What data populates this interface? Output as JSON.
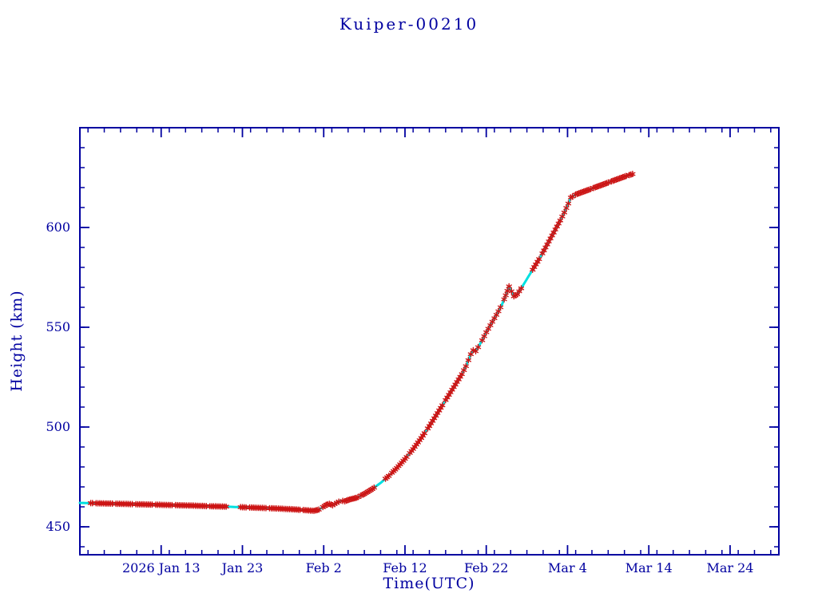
{
  "page": {
    "background": "#ffffff"
  },
  "chart_data": {
    "type": "line",
    "title": "Kuiper-00210",
    "xlabel": "Time(UTC)",
    "ylabel": "Height (km)",
    "legend": "none",
    "grid": "off",
    "colors": {
      "axis": "#0000a0",
      "text": "#0000a0",
      "marker_red": "#cc1414",
      "line_cyan": "#00e0e0",
      "background": "#ffffff"
    },
    "x_axis": {
      "unit": "day of year 2026",
      "min_day": 3,
      "max_day": 89,
      "major_tick_days": [
        13,
        23,
        33,
        43,
        53,
        63,
        73,
        83
      ],
      "major_tick_labels": [
        "2026 Jan 13",
        "Jan 23",
        "Feb 2",
        "Feb 12",
        "Feb 22",
        "Mar 4",
        "Mar 14",
        "Mar 24"
      ],
      "minor_tick_step_days": 2
    },
    "y_axis": {
      "unit": "km",
      "min": 436,
      "max": 650,
      "major_ticks": [
        450,
        500,
        550,
        600
      ],
      "major_tick_labels": [
        "450",
        "500",
        "550",
        "600"
      ],
      "minor_tick_step": 10
    },
    "series": [
      {
        "name": "height",
        "marker": "asterisk",
        "marker_color": "#cc1414",
        "line_color": "#00e0e0",
        "points": [
          [
            3.0,
            462.0
          ],
          [
            5.0,
            461.8
          ],
          [
            7.0,
            461.6
          ],
          [
            9.0,
            461.4
          ],
          [
            11.0,
            461.2
          ],
          [
            13.0,
            461.0
          ],
          [
            15.0,
            460.8
          ],
          [
            17.0,
            460.6
          ],
          [
            19.0,
            460.3
          ],
          [
            21.0,
            460.1
          ],
          [
            23.0,
            459.8
          ],
          [
            25.0,
            459.5
          ],
          [
            27.0,
            459.2
          ],
          [
            29.0,
            458.8
          ],
          [
            30.5,
            458.4
          ],
          [
            31.8,
            458.0
          ],
          [
            32.4,
            458.6
          ],
          [
            32.9,
            459.9
          ],
          [
            33.3,
            461.0
          ],
          [
            33.7,
            461.5
          ],
          [
            34.1,
            460.8
          ],
          [
            34.6,
            462.0
          ],
          [
            35.1,
            463.1
          ],
          [
            35.6,
            462.8
          ],
          [
            36.2,
            463.7
          ],
          [
            37.0,
            464.5
          ],
          [
            38.0,
            466.5
          ],
          [
            39.0,
            469.0
          ],
          [
            40.0,
            472.0
          ],
          [
            41.0,
            475.5
          ],
          [
            42.0,
            479.5
          ],
          [
            43.0,
            484.0
          ],
          [
            44.0,
            489.0
          ],
          [
            45.0,
            494.5
          ],
          [
            46.0,
            500.5
          ],
          [
            47.0,
            507.0
          ],
          [
            48.0,
            513.5
          ],
          [
            49.0,
            520.0
          ],
          [
            50.0,
            526.5
          ],
          [
            50.5,
            530.5
          ],
          [
            50.8,
            533.5
          ],
          [
            51.1,
            536.5
          ],
          [
            51.4,
            538.5
          ],
          [
            51.7,
            538.0
          ],
          [
            52.0,
            540.0
          ],
          [
            52.5,
            543.5
          ],
          [
            53.0,
            547.5
          ],
          [
            53.5,
            551.0
          ],
          [
            54.0,
            554.5
          ],
          [
            54.5,
            558.0
          ],
          [
            55.0,
            562.0
          ],
          [
            55.4,
            566.0
          ],
          [
            55.8,
            570.5
          ],
          [
            56.1,
            568.0
          ],
          [
            56.4,
            565.5
          ],
          [
            56.8,
            566.5
          ],
          [
            57.3,
            569.5
          ],
          [
            57.9,
            573.5
          ],
          [
            58.5,
            577.5
          ],
          [
            59.1,
            581.5
          ],
          [
            59.7,
            585.5
          ],
          [
            60.3,
            590.0
          ],
          [
            60.9,
            594.5
          ],
          [
            61.5,
            599.0
          ],
          [
            62.1,
            603.5
          ],
          [
            62.6,
            607.5
          ],
          [
            63.1,
            612.0
          ],
          [
            63.4,
            615.0
          ],
          [
            64.0,
            616.5
          ],
          [
            65.0,
            618.0
          ],
          [
            66.0,
            619.5
          ],
          [
            67.0,
            621.0
          ],
          [
            68.0,
            622.5
          ],
          [
            69.0,
            624.0
          ],
          [
            70.0,
            625.5
          ],
          [
            71.0,
            626.8
          ]
        ]
      }
    ]
  }
}
